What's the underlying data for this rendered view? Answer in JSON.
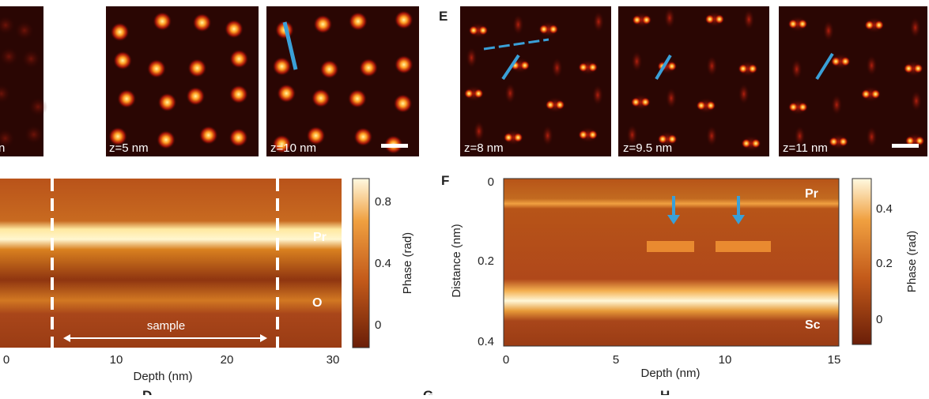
{
  "panels": {
    "top_left": {
      "captions": [
        "n",
        "z=5 nm",
        "z=10 nm"
      ]
    },
    "E": {
      "label": "E",
      "captions": [
        "z=8 nm",
        "z=9.5 nm",
        "z=11 nm"
      ]
    },
    "left_plot": {
      "colorbar_ticks": [
        "0.8",
        "0.4",
        "0"
      ],
      "colorbar_label": "Phase (rad)",
      "annotations": [
        "Pr",
        "O",
        "sample"
      ],
      "x_ticks": [
        "0",
        "10",
        "20",
        "30"
      ],
      "x_label": "Depth (nm)"
    },
    "F": {
      "label": "F",
      "y_ticks": [
        "0",
        "0.2",
        "0.4"
      ],
      "y_label": "Distance (nm)",
      "x_ticks": [
        "0",
        "5",
        "10",
        "15"
      ],
      "x_label": "Depth (nm)",
      "colorbar_ticks": [
        "0.4",
        "0.2",
        "0"
      ],
      "colorbar_label": "Phase (rad)",
      "annotations": [
        "Pr",
        "Sc"
      ]
    },
    "bottom_labels": [
      "D",
      "G",
      "H"
    ]
  }
}
